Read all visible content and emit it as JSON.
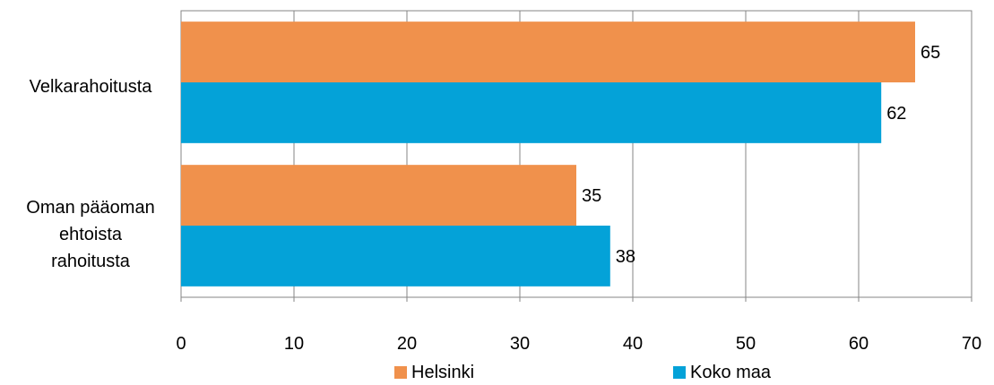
{
  "chart_data": {
    "type": "bar",
    "orientation": "horizontal",
    "categories": [
      [
        "Velkarahoitusta"
      ],
      [
        "Oman pääoman",
        "ehtoista",
        "rahoitusta"
      ]
    ],
    "series": [
      {
        "name": "Helsinki",
        "color": "#F0914C",
        "values": [
          65,
          35
        ],
        "labels": [
          "65",
          "35"
        ]
      },
      {
        "name": "Koko maa",
        "color": "#04A2D8",
        "values": [
          62,
          38
        ],
        "labels": [
          "62",
          "38"
        ]
      }
    ],
    "xlim": [
      0,
      70
    ],
    "x_ticks": [
      "0",
      "10",
      "20",
      "30",
      "40",
      "50",
      "60",
      "70"
    ],
    "grid": true,
    "legend_position": "bottom"
  }
}
